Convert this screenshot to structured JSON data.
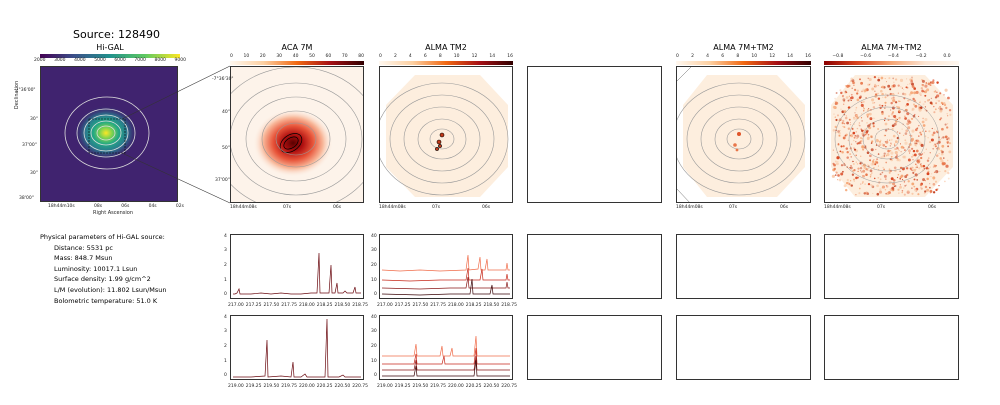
{
  "source_title": "Source: 128490",
  "panels": {
    "higal": {
      "title": "Hi-GAL",
      "cbar_ticks": [
        "2000",
        "3000",
        "4000",
        "5000",
        "6000",
        "7000",
        "8000",
        "9000"
      ],
      "ylabel": "Declination",
      "xlabel": "Right Ascension",
      "yticks": [
        "-7°36'00\"",
        "30\"",
        "37'00\"",
        "30\"",
        "38'00\""
      ],
      "xticks": [
        "18h44m10s",
        "08s",
        "06s",
        "04s",
        "02s"
      ]
    },
    "aca7m": {
      "title": "ACA 7M",
      "cbar_ticks": [
        "0",
        "10",
        "20",
        "30",
        "40",
        "50",
        "60",
        "70",
        "80"
      ],
      "yticks": [
        "-7°36'30\"",
        "40\"",
        "50\"",
        "37'00\""
      ],
      "xticks": [
        "18h44m08s",
        "07s",
        "06s"
      ]
    },
    "tm2": {
      "title": "ALMA TM2",
      "cbar_ticks": [
        "0",
        "2",
        "4",
        "6",
        "8",
        "10",
        "12",
        "14",
        "16"
      ],
      "xticks": [
        "18h44m08s",
        "07s",
        "06s"
      ]
    },
    "tm7m": {
      "title": "ALMA 7M+TM2",
      "cbar_ticks": [
        "0",
        "2",
        "4",
        "6",
        "8",
        "10",
        "12",
        "14",
        "16"
      ],
      "xticks": [
        "18h44m08s",
        "07s",
        "06s"
      ]
    },
    "tm7m_neg": {
      "title": "ALMA 7M+TM2",
      "cbar_ticks": [
        "−0.8",
        "−0.6",
        "−0.4",
        "−0.2",
        "0.0"
      ],
      "xticks": [
        "18h44m08s",
        "07s",
        "06s"
      ]
    }
  },
  "params": {
    "heading": "Physical parameters of Hi-GAL source:",
    "distance": "Distance: 5531 pc",
    "mass": "Mass: 848.7 Msun",
    "luminosity": "Luminosity: 10017.1 Lsun",
    "surface_density": "Surface density: 1.99 g/cm^2",
    "lm": "L/M (evolution): 11.802 Lsun/Msun",
    "tbol": "Bolometric temperature: 51.0 K"
  },
  "spectra": {
    "row1_xticks": [
      "217.00",
      "217.25",
      "217.50",
      "217.75",
      "218.00",
      "218.25",
      "218.50",
      "218.75"
    ],
    "row2_xticks": [
      "219.00",
      "219.25",
      "219.50",
      "219.75",
      "220.00",
      "220.25",
      "220.50",
      "220.75"
    ],
    "aca_yticks": [
      "0",
      "1",
      "2",
      "3",
      "4"
    ],
    "tm2_yticks": [
      "0",
      "10",
      "20",
      "30",
      "40"
    ]
  },
  "colors": {
    "viridis_bg": "#3b1f6b",
    "hot": "#7a0000",
    "line_light": "#f06d4b",
    "line_mid": "#c72a1c",
    "line_dark": "#6b0a10"
  }
}
